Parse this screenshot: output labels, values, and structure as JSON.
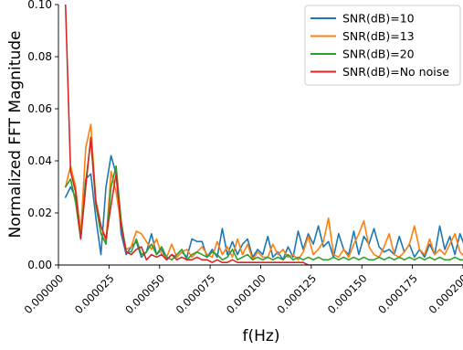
{
  "chart_data": {
    "type": "line",
    "title": "",
    "xlabel": "f(Hz)",
    "ylabel": "Normalized FFT Magnitude",
    "xlim": [
      0.0,
      0.0002
    ],
    "ylim": [
      0.0,
      0.1
    ],
    "x_ticks": [
      0.0,
      2.5e-05,
      5e-05,
      7.5e-05,
      0.0001,
      0.000125,
      0.00015,
      0.000175,
      0.0002
    ],
    "x_tick_labels": [
      "0.000000",
      "0.000025",
      "0.000050",
      "0.000075",
      "0.000100",
      "0.000125",
      "0.000150",
      "0.000175",
      "0.000200"
    ],
    "y_ticks": [
      0.0,
      0.02,
      0.04,
      0.06,
      0.08,
      0.1
    ],
    "y_tick_labels": [
      "0.00",
      "0.02",
      "0.04",
      "0.06",
      "0.08",
      "0.10"
    ],
    "grid": false,
    "legend_position": "top-right",
    "x_start": 3.5e-06,
    "x_step": 2.5e-06,
    "series": [
      {
        "name": "SNR(dB)=10",
        "color": "#1f77b4",
        "values": [
          0.026,
          0.03,
          0.026,
          0.012,
          0.033,
          0.035,
          0.018,
          0.004,
          0.03,
          0.042,
          0.035,
          0.012,
          0.004,
          0.007,
          0.009,
          0.003,
          0.005,
          0.012,
          0.004,
          0.006,
          0.002,
          0.004,
          0.003,
          0.005,
          0.003,
          0.01,
          0.009,
          0.009,
          0.003,
          0.006,
          0.003,
          0.014,
          0.004,
          0.009,
          0.004,
          0.008,
          0.01,
          0.003,
          0.006,
          0.004,
          0.011,
          0.003,
          0.005,
          0.002,
          0.007,
          0.003,
          0.013,
          0.006,
          0.012,
          0.008,
          0.015,
          0.007,
          0.009,
          0.003,
          0.012,
          0.006,
          0.004,
          0.013,
          0.004,
          0.011,
          0.008,
          0.014,
          0.007,
          0.005,
          0.006,
          0.004,
          0.011,
          0.005,
          0.008,
          0.003,
          0.006,
          0.003,
          0.008,
          0.004,
          0.015,
          0.006,
          0.011,
          0.004,
          0.012,
          0.007,
          0.003,
          0.012,
          0.011
        ]
      },
      {
        "name": "SNR(dB)=13",
        "color": "#ff7f0e",
        "values": [
          0.03,
          0.038,
          0.03,
          0.012,
          0.045,
          0.054,
          0.025,
          0.015,
          0.009,
          0.036,
          0.028,
          0.015,
          0.006,
          0.007,
          0.013,
          0.012,
          0.009,
          0.006,
          0.01,
          0.004,
          0.003,
          0.008,
          0.003,
          0.005,
          0.006,
          0.003,
          0.005,
          0.007,
          0.004,
          0.003,
          0.009,
          0.004,
          0.007,
          0.003,
          0.01,
          0.004,
          0.008,
          0.002,
          0.005,
          0.003,
          0.003,
          0.008,
          0.004,
          0.006,
          0.003,
          0.004,
          0.002,
          0.005,
          0.011,
          0.004,
          0.006,
          0.009,
          0.018,
          0.004,
          0.003,
          0.006,
          0.003,
          0.008,
          0.012,
          0.017,
          0.007,
          0.004,
          0.003,
          0.007,
          0.012,
          0.004,
          0.003,
          0.005,
          0.008,
          0.015,
          0.006,
          0.004,
          0.01,
          0.004,
          0.006,
          0.004,
          0.008,
          0.012,
          0.005,
          0.003,
          0.004,
          0.005,
          0.006
        ]
      },
      {
        "name": "SNR(dB)=20",
        "color": "#2ca02c",
        "values": [
          0.03,
          0.033,
          0.024,
          0.01,
          0.032,
          0.048,
          0.023,
          0.012,
          0.008,
          0.03,
          0.038,
          0.017,
          0.005,
          0.005,
          0.01,
          0.004,
          0.005,
          0.008,
          0.004,
          0.007,
          0.003,
          0.002,
          0.004,
          0.006,
          0.002,
          0.004,
          0.005,
          0.004,
          0.003,
          0.005,
          0.004,
          0.002,
          0.003,
          0.006,
          0.002,
          0.003,
          0.004,
          0.002,
          0.003,
          0.002,
          0.003,
          0.002,
          0.003,
          0.002,
          0.004,
          0.002,
          0.003,
          0.002,
          0.003,
          0.002,
          0.003,
          0.002,
          0.002,
          0.003,
          0.002,
          0.003,
          0.002,
          0.003,
          0.002,
          0.003,
          0.002,
          0.002,
          0.003,
          0.002,
          0.003,
          0.002,
          0.003,
          0.002,
          0.003,
          0.002,
          0.003,
          0.002,
          0.003,
          0.002,
          0.003,
          0.002,
          0.002,
          0.003,
          0.002,
          0.002,
          0.003,
          0.002,
          0.004
        ]
      },
      {
        "name": "SNR(dB)=No noise",
        "color": "#d62728",
        "values": [
          0.1,
          0.036,
          0.028,
          0.01,
          0.03,
          0.049,
          0.024,
          0.015,
          0.01,
          0.023,
          0.035,
          0.015,
          0.005,
          0.004,
          0.006,
          0.007,
          0.002,
          0.004,
          0.003,
          0.004,
          0.002,
          0.004,
          0.002,
          0.003,
          0.002,
          0.002,
          0.003,
          0.002,
          0.002,
          0.001,
          0.002,
          0.001,
          0.001,
          0.002,
          0.001,
          0.001,
          0.001,
          0.001,
          0.001,
          0.001,
          0.001,
          0.001,
          0.001,
          0.001,
          0.001,
          0.001,
          0.001,
          0.001,
          0.0,
          0.0,
          0.0,
          0.0,
          0.0,
          0.0,
          0.0,
          0.0,
          0.0,
          0.0,
          0.0,
          0.0,
          0.0,
          0.0,
          0.0,
          0.0,
          0.0,
          0.0,
          0.0,
          0.0,
          0.0,
          0.0,
          0.0,
          0.0,
          0.0,
          0.0,
          0.0,
          0.0,
          0.0,
          0.0,
          0.0,
          0.0,
          0.0,
          0.0,
          0.0
        ]
      }
    ]
  }
}
